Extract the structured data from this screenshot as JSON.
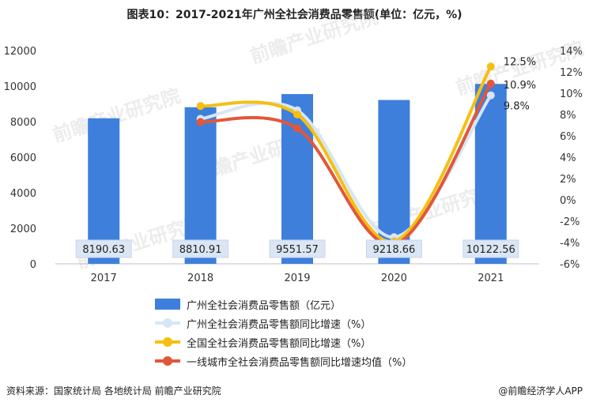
{
  "title": "图表10：2017-2021年广州全社会消费品零售额(单位：亿元，%)",
  "source": "资料来源：国家统计局 各地统计局 前瞻产业研究院",
  "brand": "@前瞻经济学人APP",
  "watermark_text": "前瞻产业研究院",
  "colors": {
    "bar": "#3e7fdc",
    "guangzhou_line": "#d6e6f5",
    "national_line": "#f5bf12",
    "tier1_line": "#e2573a",
    "bar_label_bg": "#dbe6f4",
    "axis_text": "#333333"
  },
  "chart_data": {
    "type": "bar",
    "categories": [
      "2017",
      "2018",
      "2019",
      "2020",
      "2021"
    ],
    "left_ticks": [
      "0",
      "2000",
      "4000",
      "6000",
      "8000",
      "10000",
      "12000"
    ],
    "right_ticks": [
      "-6%",
      "-4%",
      "-2%",
      "0%",
      "2%",
      "4%",
      "6%",
      "8%",
      "10%",
      "12%",
      "14%"
    ],
    "ylim_left": [
      0,
      12000
    ],
    "ylim_right": [
      -6,
      14
    ],
    "series": [
      {
        "name": "广州全社会消费品零售额（亿元）",
        "type": "bar",
        "values": [
          8190.63,
          8810.91,
          9551.57,
          9218.66,
          10122.56
        ],
        "labels": [
          "8190.63",
          "8810.91",
          "9551.57",
          "9218.66",
          "10122.56"
        ]
      },
      {
        "name": "广州全社会消费品零售额同比增速（%）",
        "type": "line",
        "values": [
          null,
          7.6,
          8.4,
          -3.5,
          9.8
        ]
      },
      {
        "name": "全国全社会消费品零售额同比增速（%）",
        "type": "line",
        "values": [
          null,
          8.8,
          8.0,
          -3.9,
          12.5
        ]
      },
      {
        "name": "一线城市全社会消费品零售额同比增速均值（%）",
        "type": "line",
        "values": [
          null,
          7.3,
          6.7,
          -4.2,
          10.9
        ]
      }
    ],
    "end_labels": [
      "12.5%",
      "10.9%",
      "9.8%"
    ],
    "legend_position": "bottom"
  }
}
